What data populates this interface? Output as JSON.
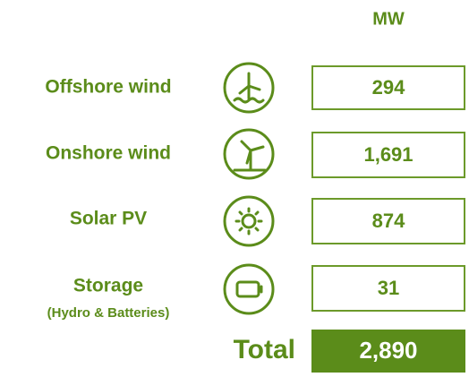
{
  "header": {
    "unit": "MW"
  },
  "rows": [
    {
      "label": "Offshore wind",
      "value": "294"
    },
    {
      "label": "Onshore wind",
      "value": "1,691"
    },
    {
      "label": "Solar PV",
      "value": "874"
    },
    {
      "label": "Storage",
      "sublabel": "(Hydro & Batteries)",
      "value": "31"
    }
  ],
  "total": {
    "label": "Total",
    "value": "2,890"
  }
}
